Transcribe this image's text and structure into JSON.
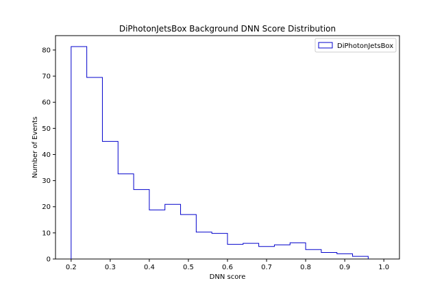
{
  "chart_data": {
    "type": "histogram",
    "title": "DiPhotonJetsBox Background DNN Score Distribution",
    "xlabel": "DNN score",
    "ylabel": "Number of Events",
    "xlim": [
      0.16,
      1.04
    ],
    "ylim": [
      0,
      85.5
    ],
    "xticks": [
      0.2,
      0.3,
      0.4,
      0.5,
      0.6,
      0.7,
      0.8,
      0.9,
      1.0
    ],
    "xtick_labels": [
      "0.2",
      "0.3",
      "0.4",
      "0.5",
      "0.6",
      "0.7",
      "0.8",
      "0.9",
      "1.0"
    ],
    "yticks": [
      0,
      10,
      20,
      30,
      40,
      50,
      60,
      70,
      80
    ],
    "ytick_labels": [
      "0",
      "10",
      "20",
      "30",
      "40",
      "50",
      "60",
      "70",
      "80"
    ],
    "grid": false,
    "legend_position": "top-right",
    "series": [
      {
        "name": "DiPhotonJetsBox",
        "color": "#0000cc",
        "histtype": "step",
        "bin_edges": [
          0.2,
          0.24,
          0.28,
          0.32,
          0.36,
          0.4,
          0.44,
          0.48,
          0.52,
          0.56,
          0.6,
          0.64,
          0.68,
          0.72,
          0.76,
          0.8,
          0.84,
          0.88,
          0.92,
          0.96
        ],
        "values": [
          81.3,
          69.5,
          45,
          32.6,
          26.6,
          18.8,
          20.9,
          17,
          10.3,
          9.8,
          5.6,
          6,
          4.8,
          5.4,
          6.2,
          3.6,
          2.5,
          2,
          1
        ]
      }
    ]
  }
}
